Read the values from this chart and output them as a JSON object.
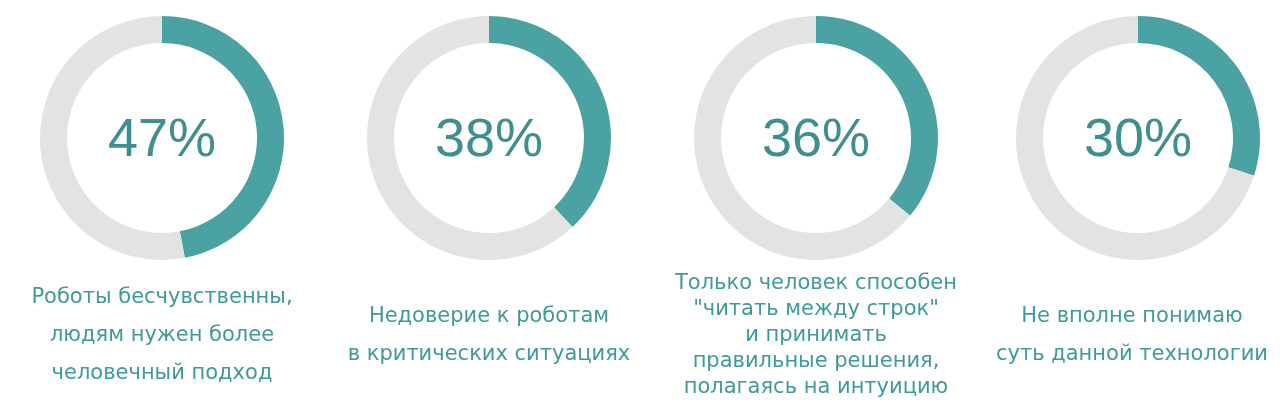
{
  "chart_data": [
    {
      "type": "donut",
      "title": "Роботы бесчувственны,\nлюдям нужен более\nчеловечный подход",
      "categories": [
        null,
        null
      ],
      "values": [
        47,
        53
      ],
      "colors": [
        "#4aa3a2",
        "#e3e3e3"
      ],
      "value_labels": [
        "47%",
        null
      ]
    },
    {
      "type": "donut",
      "title": "Недоверие к роботам\nв критических ситуациях",
      "categories": [
        null,
        null
      ],
      "values": [
        38,
        62
      ],
      "colors": [
        "#4aa3a2",
        "#e3e3e3"
      ],
      "value_labels": [
        "38%",
        null
      ]
    },
    {
      "type": "donut",
      "title": "Только человек способен\n\"читать между строк\"\nи принимать\nправильные решения,\nполагаясь на интуицию",
      "categories": [
        null,
        null
      ],
      "values": [
        36,
        64
      ],
      "colors": [
        "#4aa3a2",
        "#e3e3e3"
      ],
      "value_labels": [
        "36%",
        null
      ]
    },
    {
      "type": "donut",
      "title": "Не вполне понимаю\nсуть данной технологии",
      "categories": [
        null,
        null
      ],
      "values": [
        30,
        70
      ],
      "colors": [
        "#4aa3a2",
        "#e3e3e3"
      ],
      "value_labels": [
        "30%",
        null
      ]
    }
  ]
}
